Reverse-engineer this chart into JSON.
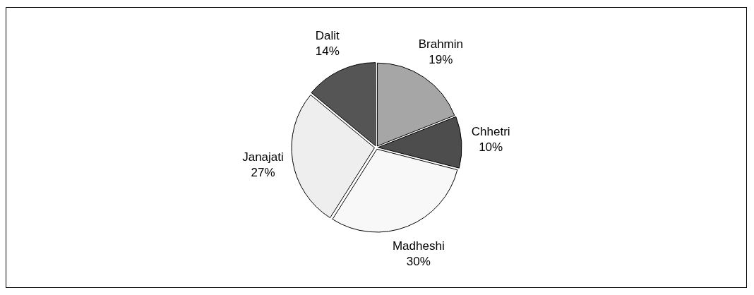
{
  "chart_data": {
    "type": "pie",
    "categories": [
      "Brahmin",
      "Chhetri",
      "Madheshi",
      "Janajati",
      "Dalit"
    ],
    "values": [
      19,
      10,
      30,
      27,
      14
    ],
    "colors": [
      "#a6a6a6",
      "#4d4d4d",
      "#f8f8f8",
      "#eeeeee",
      "#555555"
    ],
    "value_labels": [
      "19%",
      "10%",
      "30%",
      "27%",
      "14%"
    ],
    "legend": false
  }
}
